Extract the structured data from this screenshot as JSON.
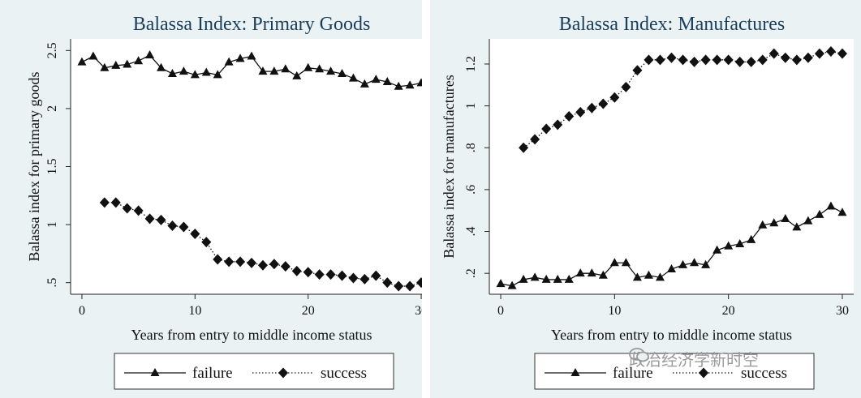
{
  "chart_data": [
    {
      "type": "line",
      "title": "Balassa Index: Primary Goods",
      "xlabel": "Years from entry to middle income status",
      "ylabel": "Balassa index for primary goods",
      "xlim": [
        -1,
        31
      ],
      "ylim": [
        0.4,
        2.6
      ],
      "xticks": [
        0,
        10,
        20,
        30
      ],
      "xtick_labels": [
        "0",
        "10",
        "20",
        "30"
      ],
      "yticks": [
        0.5,
        1,
        1.5,
        2,
        2.5
      ],
      "ytick_labels": [
        ".5",
        "1",
        "1.5",
        "2",
        "2.5"
      ],
      "legend_position": "bottom",
      "series": [
        {
          "name": "failure",
          "marker": "triangle",
          "line": "solid",
          "x": [
            0,
            1,
            2,
            3,
            4,
            5,
            6,
            7,
            8,
            9,
            10,
            11,
            12,
            13,
            14,
            15,
            16,
            17,
            18,
            19,
            20,
            21,
            22,
            23,
            24,
            25,
            26,
            27,
            28,
            29,
            30
          ],
          "values": [
            2.4,
            2.45,
            2.35,
            2.37,
            2.38,
            2.41,
            2.46,
            2.35,
            2.3,
            2.32,
            2.29,
            2.31,
            2.29,
            2.4,
            2.43,
            2.45,
            2.32,
            2.32,
            2.34,
            2.28,
            2.35,
            2.34,
            2.32,
            2.3,
            2.26,
            2.21,
            2.25,
            2.23,
            2.19,
            2.2,
            2.22
          ]
        },
        {
          "name": "success",
          "marker": "diamond",
          "line": "dotted",
          "x": [
            2,
            3,
            4,
            5,
            6,
            7,
            8,
            9,
            10,
            11,
            12,
            13,
            14,
            15,
            16,
            17,
            18,
            19,
            20,
            21,
            22,
            23,
            24,
            25,
            26,
            27,
            28,
            29,
            30
          ],
          "values": [
            1.19,
            1.19,
            1.14,
            1.12,
            1.05,
            1.04,
            0.99,
            0.98,
            0.92,
            0.85,
            0.7,
            0.68,
            0.68,
            0.67,
            0.65,
            0.66,
            0.64,
            0.6,
            0.59,
            0.57,
            0.57,
            0.56,
            0.54,
            0.53,
            0.56,
            0.5,
            0.47,
            0.47,
            0.5
          ]
        }
      ]
    },
    {
      "type": "line",
      "title": "Balassa Index: Manufactures",
      "xlabel": "Years from entry to middle income status",
      "ylabel": "Balassa index for manufactures",
      "xlim": [
        -1,
        31
      ],
      "ylim": [
        0.1,
        1.32
      ],
      "xticks": [
        0,
        10,
        20,
        30
      ],
      "xtick_labels": [
        "0",
        "10",
        "20",
        "30"
      ],
      "yticks": [
        0.2,
        0.4,
        0.6,
        0.8,
        1.0,
        1.2
      ],
      "ytick_labels": [
        ".2",
        ".4",
        ".6",
        ".8",
        "1",
        "1.2"
      ],
      "legend_position": "bottom",
      "series": [
        {
          "name": "failure",
          "marker": "triangle",
          "line": "solid",
          "x": [
            0,
            1,
            2,
            3,
            4,
            5,
            6,
            7,
            8,
            9,
            10,
            11,
            12,
            13,
            14,
            15,
            16,
            17,
            18,
            19,
            20,
            21,
            22,
            23,
            24,
            25,
            26,
            27,
            28,
            29,
            30
          ],
          "values": [
            0.15,
            0.14,
            0.17,
            0.18,
            0.17,
            0.17,
            0.17,
            0.2,
            0.2,
            0.19,
            0.25,
            0.25,
            0.18,
            0.19,
            0.18,
            0.22,
            0.24,
            0.25,
            0.24,
            0.31,
            0.33,
            0.34,
            0.36,
            0.43,
            0.44,
            0.46,
            0.42,
            0.45,
            0.48,
            0.52,
            0.49
          ]
        },
        {
          "name": "success",
          "marker": "diamond",
          "line": "dotted",
          "x": [
            2,
            3,
            4,
            5,
            6,
            7,
            8,
            9,
            10,
            11,
            12,
            13,
            14,
            15,
            16,
            17,
            18,
            19,
            20,
            21,
            22,
            23,
            24,
            25,
            26,
            27,
            28,
            29,
            30
          ],
          "values": [
            0.8,
            0.84,
            0.89,
            0.91,
            0.95,
            0.97,
            0.99,
            1.01,
            1.04,
            1.09,
            1.17,
            1.22,
            1.22,
            1.23,
            1.22,
            1.21,
            1.22,
            1.22,
            1.22,
            1.21,
            1.21,
            1.22,
            1.25,
            1.23,
            1.22,
            1.23,
            1.25,
            1.26,
            1.25
          ]
        }
      ]
    }
  ],
  "watermark": "政治经济学新时空"
}
